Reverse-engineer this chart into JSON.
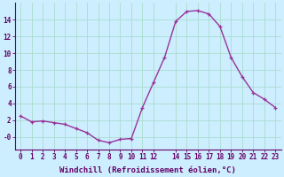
{
  "x": [
    0,
    1,
    2,
    3,
    4,
    5,
    6,
    7,
    8,
    9,
    10,
    11,
    12,
    13,
    14,
    15,
    16,
    17,
    18,
    19,
    20,
    21,
    22,
    23
  ],
  "y": [
    2.5,
    1.8,
    1.9,
    1.7,
    1.5,
    1.0,
    0.5,
    -0.4,
    -0.7,
    -0.3,
    -0.2,
    3.5,
    6.5,
    9.5,
    13.8,
    15.0,
    15.1,
    14.7,
    13.2,
    9.5,
    7.2,
    5.3,
    4.5,
    3.5
  ],
  "line_color": "#993399",
  "marker": "+",
  "marker_size": 3.5,
  "bg_color": "#cceeff",
  "grid_color": "#aaddcc",
  "xlabel": "Windchill (Refroidissement éolien,°C)",
  "ylim": [
    -1.5,
    16.0
  ],
  "xlim": [
    -0.5,
    23.5
  ],
  "yticks": [
    0,
    2,
    4,
    6,
    8,
    10,
    12,
    14
  ],
  "ytick_labels": [
    "-0",
    "2",
    "4",
    "6",
    "8",
    "10",
    "12",
    "14"
  ],
  "xticks": [
    0,
    1,
    2,
    3,
    4,
    5,
    6,
    7,
    8,
    9,
    10,
    11,
    12,
    14,
    15,
    16,
    17,
    18,
    19,
    20,
    21,
    22,
    23
  ],
  "xtick_labels": [
    "0",
    "1",
    "2",
    "3",
    "4",
    "5",
    "6",
    "7",
    "8",
    "9",
    "10",
    "11",
    "12",
    "14",
    "15",
    "16",
    "17",
    "18",
    "19",
    "20",
    "21",
    "22",
    "23"
  ],
  "tick_fontsize": 5.5,
  "xlabel_fontsize": 6.5,
  "label_color": "#660066",
  "line_width": 1.0,
  "marker_edge_width": 0.9
}
